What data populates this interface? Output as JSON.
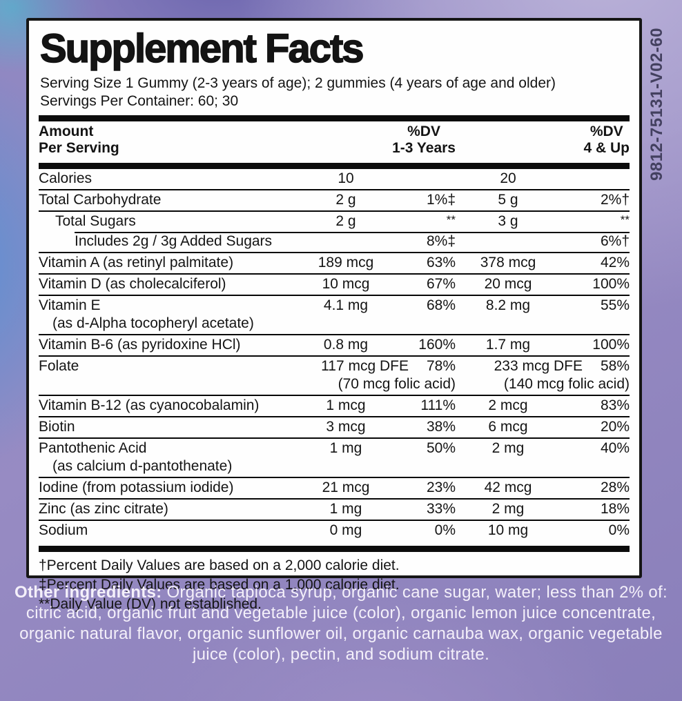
{
  "product_code": "9812-75131-V02-60",
  "label": {
    "title": "Supplement Facts",
    "serving_size": "Serving Size 1 Gummy (2-3 years of age); 2 gummies (4 years of age and older)",
    "servings_per_container": "Servings Per Container: 60; 30",
    "columns": {
      "amount_l1": "Amount",
      "amount_l2": "Per Serving",
      "dv13_l1": "%DV",
      "dv13_l2": "1-3 Years",
      "dv4_l1": "%DV",
      "dv4_l2": "4 & Up"
    },
    "rows": [
      {
        "name": "Calories",
        "a1": "10",
        "d1": "",
        "a2": "20",
        "d2": "",
        "sep": "none"
      },
      {
        "name": "Total Carbohydrate",
        "a1": "2 g",
        "d1": "1%‡",
        "a2": "5 g",
        "d2": "2%†",
        "sep": "full"
      },
      {
        "name": "Total Sugars",
        "indent": 1,
        "a1": "2 g",
        "d1": "**",
        "a2": "3 g",
        "d2": "**",
        "sep": "full"
      },
      {
        "name": "Includes 2g / 3g Added Sugars",
        "indent": 2,
        "a1": "",
        "d1": "8%‡",
        "a2": "",
        "d2": "6%†",
        "sep": "indent"
      },
      {
        "name": "Vitamin A (as retinyl palmitate)",
        "a1": "189 mcg",
        "d1": "63%",
        "a2": "378 mcg",
        "d2": "42%",
        "sep": "full"
      },
      {
        "name": "Vitamin D (as cholecalciferol)",
        "a1": "10 mcg",
        "d1": "67%",
        "a2": "20 mcg",
        "d2": "100%",
        "sep": "full"
      },
      {
        "name": "Vitamin E",
        "name2": "(as d-Alpha tocopheryl acetate)",
        "a1": "4.1 mg",
        "d1": "68%",
        "a2": "8.2 mg",
        "d2": "55%",
        "sep": "full"
      },
      {
        "name": "Vitamin B-6 (as pyridoxine HCl)",
        "a1": "0.8 mg",
        "d1": "160%",
        "a2": "1.7 mg",
        "d2": "100%",
        "sep": "full"
      },
      {
        "name": "Folate",
        "combo": true,
        "a1": "117 mcg DFE",
        "d1": "78%",
        "sub1": "(70 mcg folic acid)",
        "a2": "233 mcg DFE",
        "d2": "58%",
        "sub2": "(140 mcg folic acid)",
        "sep": "full"
      },
      {
        "name": "Vitamin B-12 (as cyanocobalamin)",
        "a1": "1 mcg",
        "d1": "111%",
        "a2": "2 mcg",
        "d2": "83%",
        "sep": "full"
      },
      {
        "name": "Biotin",
        "a1": "3 mcg",
        "d1": "38%",
        "a2": "6 mcg",
        "d2": "20%",
        "sep": "full"
      },
      {
        "name": "Pantothenic Acid",
        "name2": "(as calcium d-pantothenate)",
        "a1": "1 mg",
        "d1": "50%",
        "a2": "2 mg",
        "d2": "40%",
        "sep": "full"
      },
      {
        "name": "Iodine (from potassium iodide)",
        "a1": "21 mcg",
        "d1": "23%",
        "a2": "42 mcg",
        "d2": "28%",
        "sep": "full"
      },
      {
        "name": "Zinc (as zinc citrate)",
        "a1": "1 mg",
        "d1": "33%",
        "a2": "2 mg",
        "d2": "18%",
        "sep": "full"
      },
      {
        "name": "Sodium",
        "a1": "0 mg",
        "d1": "0%",
        "a2": "10 mg",
        "d2": "0%",
        "sep": "full"
      }
    ],
    "footnotes": [
      "†Percent Daily Values are based on a 2,000 calorie diet.",
      "‡Percent Daily Values are based on a 1,000 calorie diet.",
      "**Daily Value (DV) not established."
    ]
  },
  "other_ingredients": {
    "label": "Other ingredients:",
    "text": "Organic tapioca syrup, organic cane sugar, water; less than 2% of: citric acid, organic fruit and vegetable juice (color), organic lemon juice concentrate, organic natural flavor, organic sunflower oil, organic carnauba wax, organic vegetable juice (color), pectin, and sodium citrate."
  }
}
